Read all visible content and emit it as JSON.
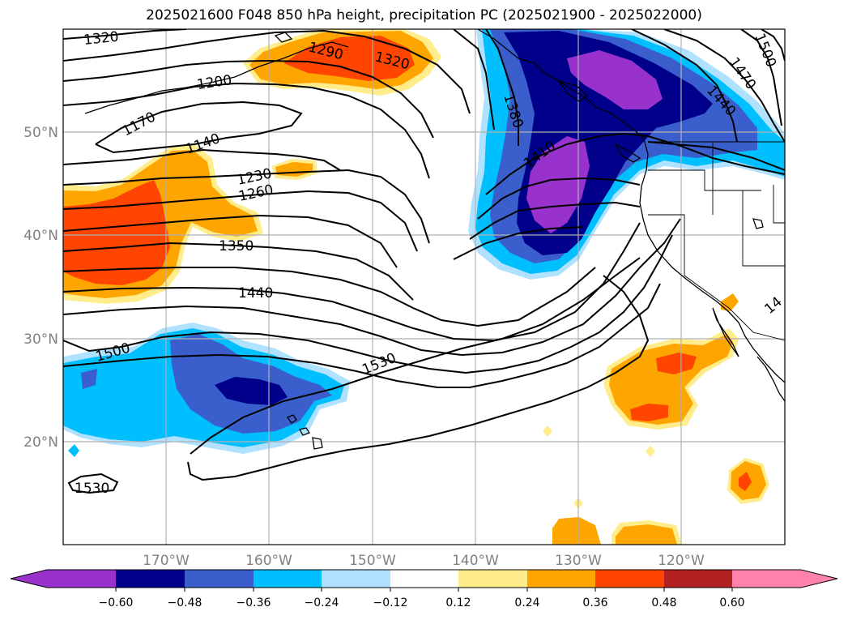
{
  "title": "2025021600 F048 850 hPa height, precipitation PC (2025021900 - 2025022000)",
  "colors": {
    "neg_060": "#9932cc",
    "neg_048": "#00008b",
    "neg_036": "#3a5fcd",
    "neg_024": "#00bfff",
    "neg_012": "#b0e2ff",
    "neutral": "#ffffff",
    "pos_012": "#ffec8b",
    "pos_024": "#ffa500",
    "pos_036": "#ff4500",
    "pos_048": "#b22222",
    "pos_060": "#ff82ab"
  },
  "chart_data": {
    "type": "contour-map",
    "projection": "lat-lon",
    "lon_range": [
      "180",
      "110°W"
    ],
    "lat_range": [
      "10°N",
      "60°N"
    ],
    "lat_ticks": [
      "20°N",
      "30°N",
      "40°N",
      "50°N"
    ],
    "lon_ticks": [
      "170°W",
      "160°W",
      "150°W",
      "140°W",
      "130°W",
      "120°W"
    ],
    "grid": true,
    "contour_field": "850 hPa height",
    "contour_labels": [
      "1320",
      "1290",
      "1320",
      "1200",
      "1170",
      "1140",
      "1230",
      "1260",
      "1350",
      "1440",
      "1500",
      "1530",
      "1530",
      "1380",
      "1410",
      "1440",
      "1470",
      "1500",
      "14"
    ],
    "fill_field": "precipitation PC",
    "colorbar": {
      "orientation": "horizontal",
      "extend": "both",
      "ticks": [
        "−0.60",
        "−0.48",
        "−0.36",
        "−0.24",
        "−0.12",
        "0.12",
        "0.24",
        "0.36",
        "0.48",
        "0.60"
      ]
    }
  }
}
